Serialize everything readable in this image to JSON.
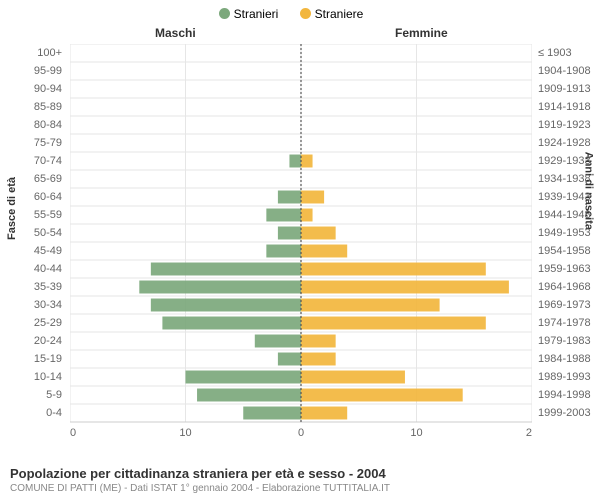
{
  "legend": {
    "items": [
      {
        "label": "Stranieri",
        "color": "#7ca87c"
      },
      {
        "label": "Straniere",
        "color": "#f2b63d"
      }
    ]
  },
  "column_headers": {
    "male": "Maschi",
    "female": "Femmine"
  },
  "y_axis_left": {
    "title": "Fasce di età"
  },
  "y_axis_right": {
    "title": "Anni di nascita"
  },
  "footer": {
    "title": "Popolazione per cittadinanza straniera per età e sesso - 2004",
    "subtitle": "COMUNE DI PATTI (ME) - Dati ISTAT 1° gennaio 2004 - Elaborazione TUTTITALIA.IT"
  },
  "chart": {
    "type": "bar-pyramid",
    "xlim": [
      -20,
      20
    ],
    "xticks": [
      -20,
      -10,
      0,
      10,
      20
    ],
    "xtick_labels": [
      "20",
      "10",
      "0",
      "10",
      "20"
    ],
    "bar_fill_opacity": 0.92,
    "background_color": "#ffffff",
    "grid_color": "#e6e6e6",
    "axis_color": "#cccccc",
    "center_line_color": "#555555",
    "male_color": "#7ca87c",
    "female_color": "#f2b63d",
    "label_fontsize": 11,
    "title_fontsize": 13,
    "rows": [
      {
        "age": "100+",
        "birth": "≤ 1903",
        "m": 0,
        "f": 0
      },
      {
        "age": "95-99",
        "birth": "1904-1908",
        "m": 0,
        "f": 0
      },
      {
        "age": "90-94",
        "birth": "1909-1913",
        "m": 0,
        "f": 0
      },
      {
        "age": "85-89",
        "birth": "1914-1918",
        "m": 0,
        "f": 0
      },
      {
        "age": "80-84",
        "birth": "1919-1923",
        "m": 0,
        "f": 0
      },
      {
        "age": "75-79",
        "birth": "1924-1928",
        "m": 0,
        "f": 0
      },
      {
        "age": "70-74",
        "birth": "1929-1933",
        "m": 1,
        "f": 1
      },
      {
        "age": "65-69",
        "birth": "1934-1938",
        "m": 0,
        "f": 0
      },
      {
        "age": "60-64",
        "birth": "1939-1943",
        "m": 2,
        "f": 2
      },
      {
        "age": "55-59",
        "birth": "1944-1948",
        "m": 3,
        "f": 1
      },
      {
        "age": "50-54",
        "birth": "1949-1953",
        "m": 2,
        "f": 3
      },
      {
        "age": "45-49",
        "birth": "1954-1958",
        "m": 3,
        "f": 4
      },
      {
        "age": "40-44",
        "birth": "1959-1963",
        "m": 13,
        "f": 16
      },
      {
        "age": "35-39",
        "birth": "1964-1968",
        "m": 14,
        "f": 18
      },
      {
        "age": "30-34",
        "birth": "1969-1973",
        "m": 13,
        "f": 12
      },
      {
        "age": "25-29",
        "birth": "1974-1978",
        "m": 12,
        "f": 16
      },
      {
        "age": "20-24",
        "birth": "1979-1983",
        "m": 4,
        "f": 3
      },
      {
        "age": "15-19",
        "birth": "1984-1988",
        "m": 2,
        "f": 3
      },
      {
        "age": "10-14",
        "birth": "1989-1993",
        "m": 10,
        "f": 9
      },
      {
        "age": "5-9",
        "birth": "1994-1998",
        "m": 9,
        "f": 14
      },
      {
        "age": "0-4",
        "birth": "1999-2003",
        "m": 5,
        "f": 4
      }
    ]
  }
}
